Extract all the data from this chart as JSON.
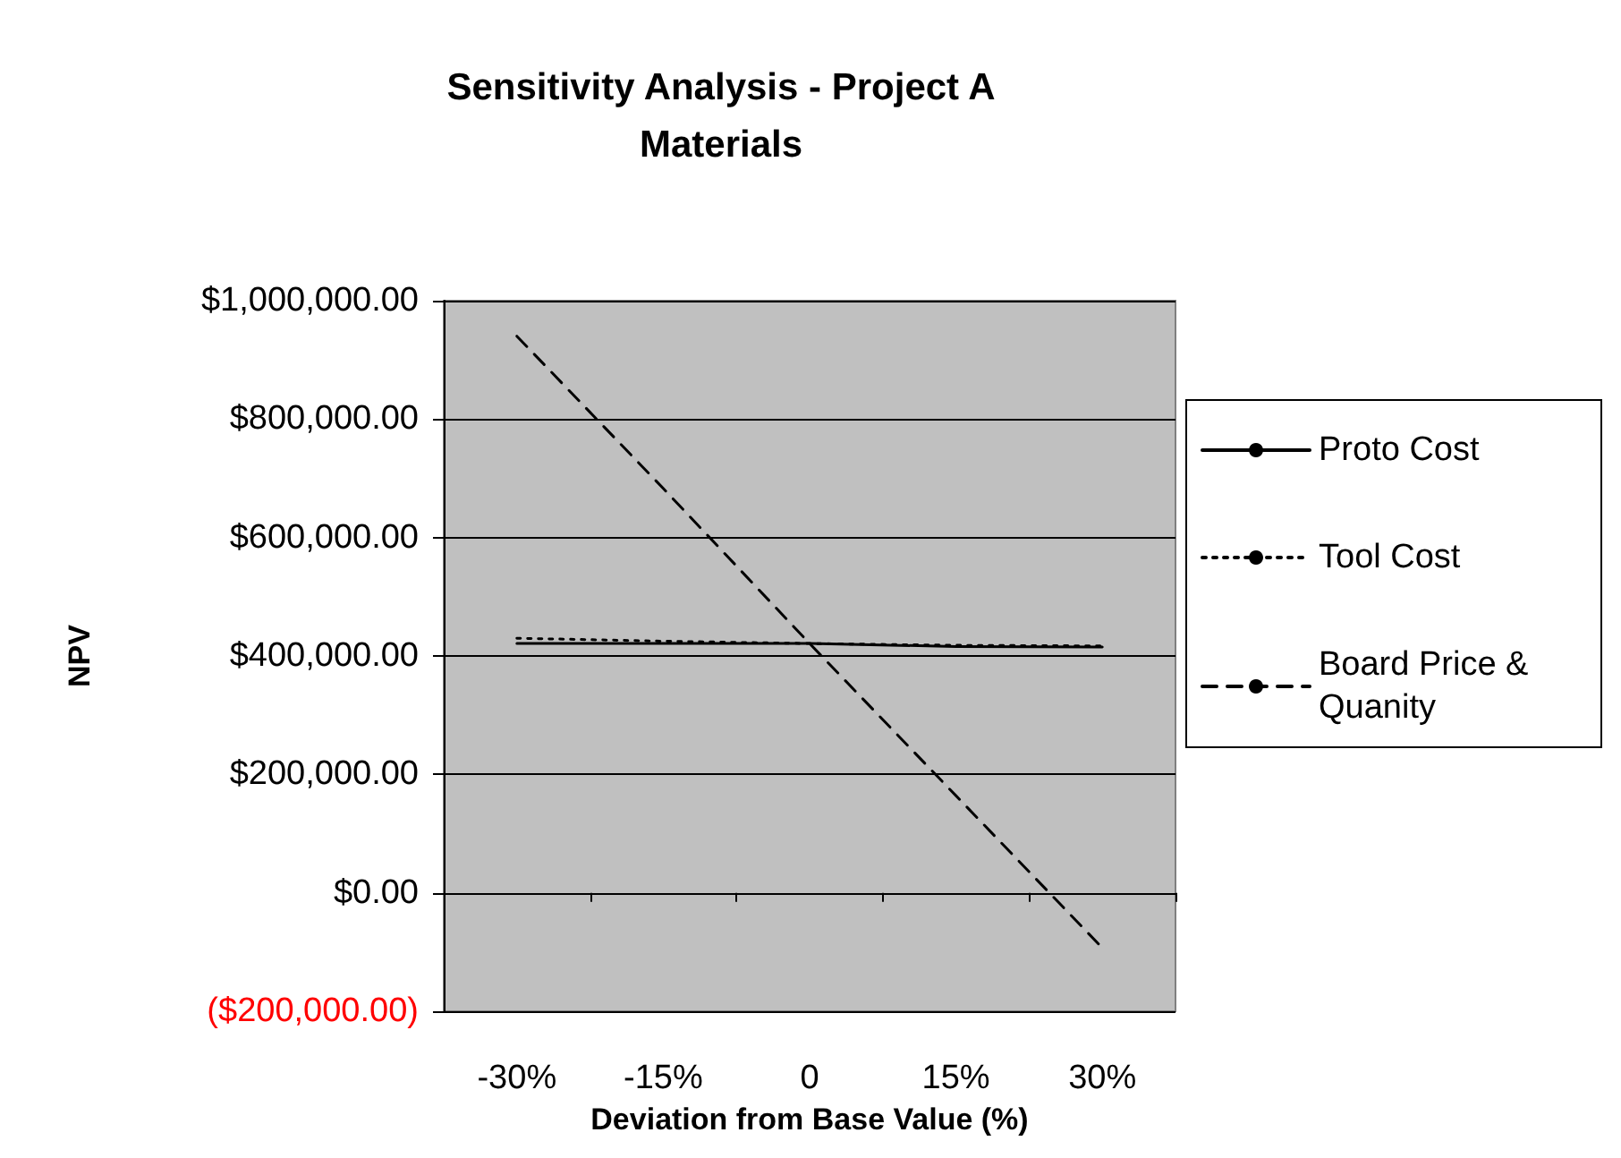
{
  "chart_data": {
    "type": "line",
    "title": "Sensitivity Analysis - Project A\nMaterials",
    "xlabel": "Deviation from Base Value (%)",
    "ylabel": "NPV",
    "categories": [
      "-30%",
      "-15%",
      "0",
      "15%",
      "30%"
    ],
    "series": [
      {
        "name": "Proto Cost",
        "color": "#000000",
        "line_style": "solid",
        "values": [
          421000,
          421000,
          421000,
          416000,
          415000
        ]
      },
      {
        "name": "Tool Cost",
        "color": "#000000",
        "line_style": "dotted",
        "values": [
          430000,
          425000,
          421000,
          418000,
          417000
        ]
      },
      {
        "name": "Board Price & Quanity",
        "color": "#000000",
        "line_style": "dashed",
        "values": [
          940000,
          683000,
          421000,
          164000,
          -93000
        ]
      }
    ],
    "ylim": [
      -200000,
      1000000
    ],
    "yticks": [
      {
        "value": -200000,
        "label": "($200,000.00)"
      },
      {
        "value": 0,
        "label": "$0.00"
      },
      {
        "value": 200000,
        "label": "$200,000.00"
      },
      {
        "value": 400000,
        "label": "$400,000.00"
      },
      {
        "value": 600000,
        "label": "$600,000.00"
      },
      {
        "value": 800000,
        "label": "$800,000.00"
      },
      {
        "value": 1000000,
        "label": "$1,000,000.00"
      }
    ],
    "grid": "y",
    "legend": "right",
    "marker": "none"
  }
}
